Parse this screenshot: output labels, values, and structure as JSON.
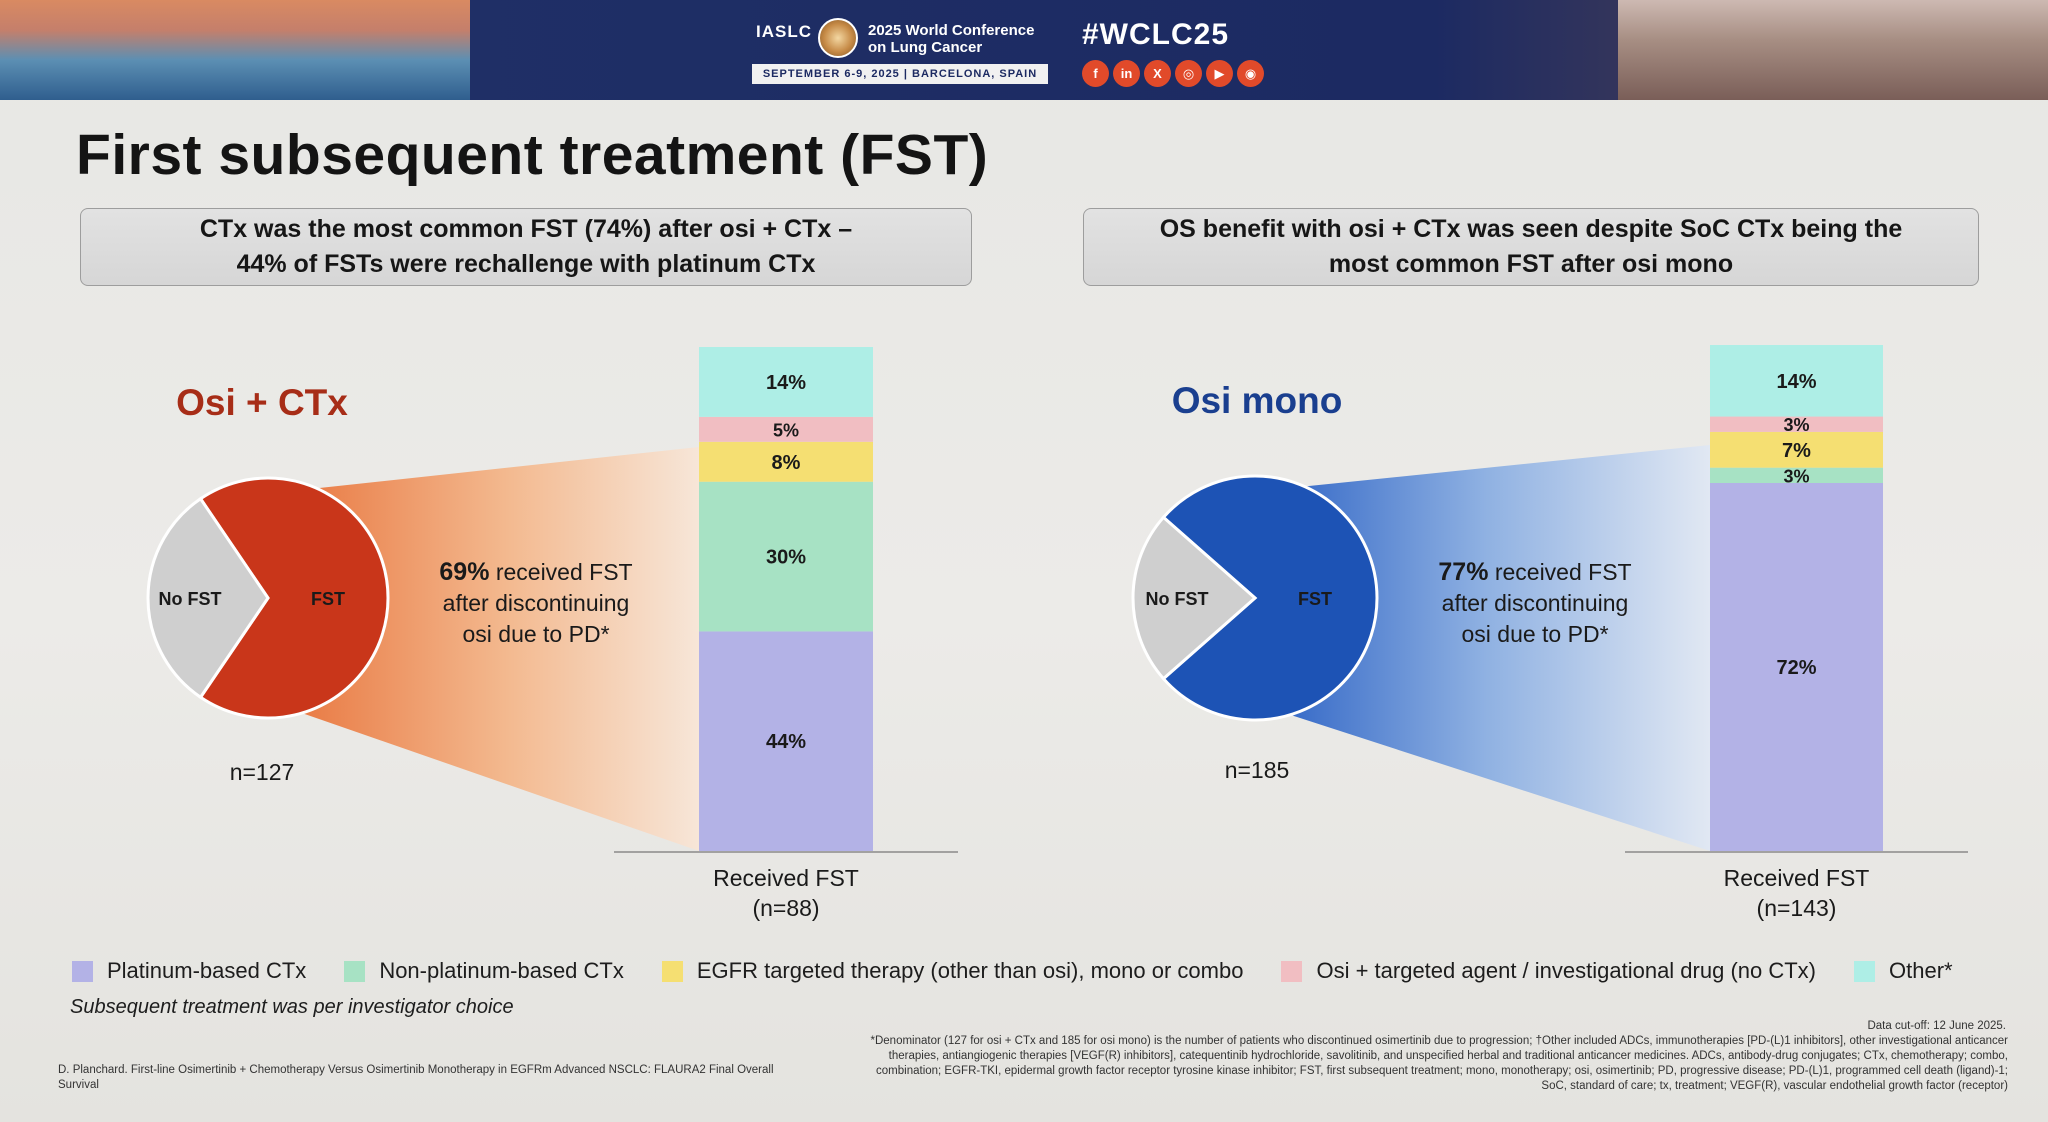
{
  "banner": {
    "org": "IASLC",
    "conference": [
      "2025 World Conference",
      "on Lung Cancer"
    ],
    "dates": "SEPTEMBER 6-9, 2025 | BARCELONA, SPAIN",
    "hashtag": "#WCLC25",
    "socials": [
      {
        "icon": "facebook-icon",
        "glyph": "f"
      },
      {
        "icon": "linkedin-icon",
        "glyph": "in"
      },
      {
        "icon": "x-icon",
        "glyph": "X"
      },
      {
        "icon": "instagram-icon",
        "glyph": "◎"
      },
      {
        "icon": "youtube-icon",
        "glyph": "▶"
      },
      {
        "icon": "wechat-icon",
        "glyph": "◉"
      }
    ]
  },
  "title": "First subsequent treatment (FST)",
  "callouts": {
    "left": [
      "CTx was the most common FST (74%) after osi + CTx –",
      "44% of FSTs were rechallenge with platinum CTx"
    ],
    "right": [
      "OS benefit with osi + CTx was seen despite SoC CTx being the",
      "most common FST after osi mono"
    ]
  },
  "colors": {
    "platinum": "#b3b2e6",
    "nonplatinum": "#a7e2c4",
    "egfr": "#f5df72",
    "osi_targeted": "#f1bec2",
    "other": "#aeeee6",
    "osi_ctx_pie": "#c9361a",
    "osi_mono_pie": "#1d53b5",
    "no_fst": "#cfcfcf",
    "label_left": "#a72d17",
    "label_right": "#1a3f8f"
  },
  "chart_data": [
    {
      "type": "pie",
      "title": "Osi + CTx",
      "n_label": "n=127",
      "slices": [
        {
          "label": "FST",
          "value": 69
        },
        {
          "label": "No FST",
          "value": 31
        }
      ],
      "annotation": {
        "bold": "69%",
        "rest": " received FST",
        "lines": [
          "after discontinuing",
          "osi due to PD*"
        ]
      }
    },
    {
      "type": "bar",
      "stacked": true,
      "categories": [
        "Received FST"
      ],
      "category_label": [
        "Received FST",
        "(n=88)"
      ],
      "series": [
        {
          "name": "Platinum-based CTx",
          "values": [
            44
          ],
          "label": "44%"
        },
        {
          "name": "Non-platinum-based CTx",
          "values": [
            30
          ],
          "label": "30%"
        },
        {
          "name": "EGFR targeted therapy (other than osi), mono or combo",
          "values": [
            8
          ],
          "label": "8%"
        },
        {
          "name": "Osi + targeted agent / investigational drug (no CTx)",
          "values": [
            5
          ],
          "label": "5%"
        },
        {
          "name": "Other*",
          "values": [
            14
          ],
          "label": "14%"
        }
      ],
      "ylim": [
        0,
        100
      ]
    },
    {
      "type": "pie",
      "title": "Osi mono",
      "n_label": "n=185",
      "slices": [
        {
          "label": "FST",
          "value": 77
        },
        {
          "label": "No FST",
          "value": 23
        }
      ],
      "annotation": {
        "bold": "77%",
        "rest": " received FST",
        "lines": [
          "after discontinuing",
          "osi due to PD*"
        ]
      }
    },
    {
      "type": "bar",
      "stacked": true,
      "categories": [
        "Received FST"
      ],
      "category_label": [
        "Received FST",
        "(n=143)"
      ],
      "series": [
        {
          "name": "Platinum-based CTx",
          "values": [
            72
          ],
          "label": "72%"
        },
        {
          "name": "Non-platinum-based CTx",
          "values": [
            3
          ],
          "label": "3%"
        },
        {
          "name": "EGFR targeted therapy (other than osi), mono or combo",
          "values": [
            7
          ],
          "label": "7%"
        },
        {
          "name": "Osi + targeted agent / investigational drug (no CTx)",
          "values": [
            3
          ],
          "label": "3%"
        },
        {
          "name": "Other*",
          "values": [
            14
          ],
          "label": "14%"
        }
      ],
      "ylim": [
        0,
        100
      ]
    }
  ],
  "legend": [
    {
      "label": "Platinum-based CTx",
      "color": "#b3b2e6"
    },
    {
      "label": "Non-platinum-based CTx",
      "color": "#a7e2c4"
    },
    {
      "label": "EGFR targeted therapy (other than osi), mono or combo",
      "color": "#f5df72"
    },
    {
      "label": "Osi + targeted agent / investigational drug (no CTx)",
      "color": "#f1bec2"
    },
    {
      "label": "Other*",
      "color": "#aeeee6"
    }
  ],
  "note": "Subsequent treatment was per investigator choice",
  "citation": "D. Planchard. First-line Osimertinib + Chemotherapy Versus Osimertinib Monotherapy in EGFRm Advanced NSCLC: FLAURA2 Final Overall Survival",
  "cutoff": "Data cut-off: 12 June 2025.",
  "footnote": "*Denominator (127 for osi + CTx and 185 for osi mono) is the number of patients who discontinued osimertinib due to progression; †Other included ADCs, immunotherapies [PD-(L)1 inhibitors], other investigational anticancer therapies, antiangiogenic therapies [VEGF(R) inhibitors], catequentinib hydrochloride, savolitinib, and unspecified herbal and traditional anticancer medicines. ADCs, antibody-drug conjugates; CTx, chemotherapy; combo, combination; EGFR-TKI, epidermal growth factor receptor tyrosine kinase inhibitor; FST, first subsequent treatment; mono, monotherapy; osi, osimertinib; PD, progressive disease; PD-(L)1, programmed cell death (ligand)-1; SoC, standard of care; tx, treatment; VEGF(R), vascular endothelial growth factor (receptor)"
}
